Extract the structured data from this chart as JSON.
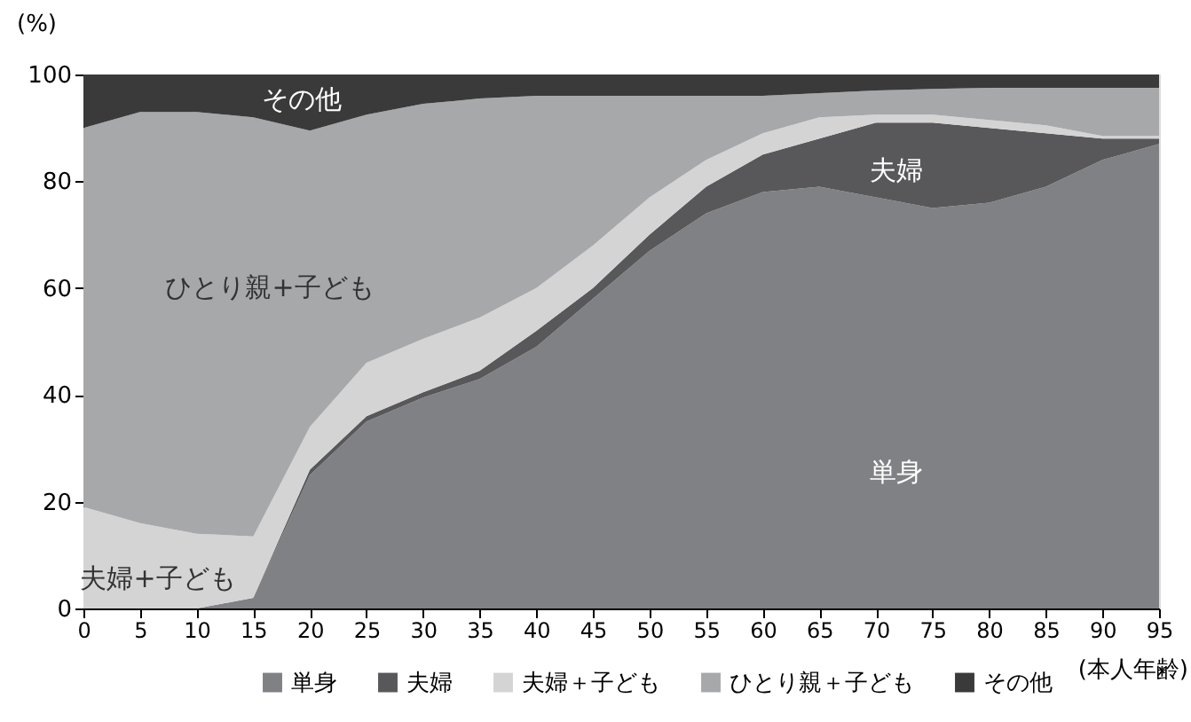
{
  "chart_data": {
    "type": "area",
    "stacked": true,
    "xlabel": "(本人年齢)",
    "ylabel": "(%)",
    "x": [
      0,
      5,
      10,
      15,
      20,
      25,
      30,
      35,
      40,
      45,
      50,
      55,
      60,
      65,
      70,
      75,
      80,
      85,
      90,
      95
    ],
    "series": [
      {
        "name": "単身",
        "color": "#808184",
        "values": [
          0,
          0,
          0,
          2,
          25,
          35,
          39.5,
          43,
          49,
          58,
          67,
          74,
          78,
          79,
          77,
          75,
          76,
          79,
          84,
          87
        ]
      },
      {
        "name": "夫婦",
        "color": "#58585a",
        "values": [
          0,
          0,
          0,
          0,
          1,
          1,
          1,
          1.5,
          3,
          2,
          3,
          5,
          7,
          9,
          14,
          16,
          14,
          10,
          4,
          1
        ]
      },
      {
        "name": "夫婦＋子ども",
        "color": "#d4d4d5",
        "values": [
          19,
          16,
          14,
          11.5,
          8,
          10,
          10,
          10,
          8,
          8,
          7,
          5,
          4,
          4,
          1.5,
          1.5,
          1.5,
          1.5,
          0.5,
          0.5
        ]
      },
      {
        "name": "ひとり親＋子ども",
        "color": "#a7a8aa",
        "values": [
          71,
          77,
          79,
          78.5,
          55.5,
          46.5,
          44,
          41,
          36,
          28,
          19,
          12,
          7,
          4.5,
          4.5,
          4.8,
          6,
          7,
          9,
          9
        ]
      },
      {
        "name": "その他",
        "color": "#3a3a3b",
        "values": [
          10,
          7,
          7,
          8,
          10.5,
          7.5,
          5.5,
          4.5,
          4,
          4,
          4,
          4,
          4,
          3.5,
          3,
          2.7,
          2.5,
          2.5,
          2.5,
          2.5
        ]
      }
    ],
    "annotations": [
      "その他",
      "ひとり親+子ども",
      "夫婦+子ども",
      "夫婦",
      "単身"
    ],
    "xlim": [
      0,
      95
    ],
    "xticks": [
      0,
      5,
      10,
      15,
      20,
      25,
      30,
      35,
      40,
      45,
      50,
      55,
      60,
      65,
      70,
      75,
      80,
      85,
      90,
      95
    ],
    "ylim": [
      0,
      100
    ],
    "yticks": [
      0,
      20,
      40,
      60,
      80,
      100
    ],
    "grid": false,
    "legend": "bottom"
  }
}
